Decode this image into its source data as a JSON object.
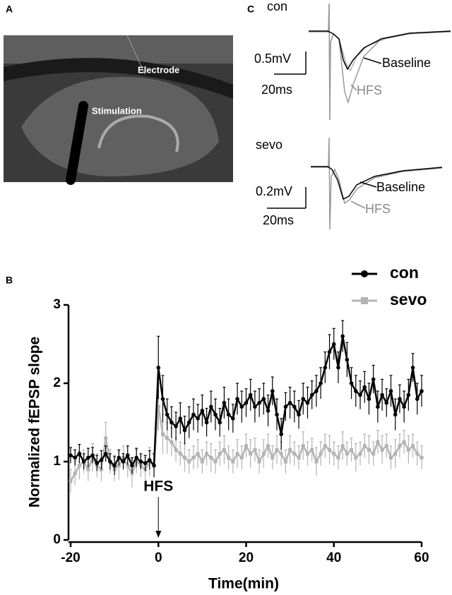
{
  "panels": {
    "a": {
      "label": "A",
      "labels": [
        "Electrode",
        "Stimulation"
      ]
    },
    "b": {
      "label": "B"
    },
    "c": {
      "label": "C",
      "traces": [
        {
          "name": "con",
          "scale_y": "0.5mV",
          "scale_x": "20ms",
          "labels": [
            "Baseline",
            "HFS"
          ]
        },
        {
          "name": "sevo",
          "scale_y": "0.2mV",
          "scale_x": "20ms",
          "labels": [
            "Baseline",
            "HFS"
          ]
        }
      ]
    }
  },
  "chart_data": {
    "type": "line",
    "x_label": "Time(min)",
    "y_label": "Normalized fEPSP slope",
    "xlim": [
      -20,
      60
    ],
    "xticks": [
      -20,
      0,
      20,
      40,
      60
    ],
    "ylim": [
      0,
      3
    ],
    "yticks": [
      0,
      1,
      2,
      3
    ],
    "legend": "upper right",
    "annotations": [
      {
        "text": "HFS",
        "x": 0
      }
    ],
    "x": [
      -20,
      -19,
      -18,
      -17,
      -16,
      -15,
      -14,
      -13,
      -12,
      -11,
      -10,
      -9,
      -8,
      -7,
      -6,
      -5,
      -4,
      -3,
      -2,
      -1,
      0,
      1,
      2,
      3,
      4,
      5,
      6,
      7,
      8,
      9,
      10,
      11,
      12,
      13,
      14,
      15,
      16,
      17,
      18,
      19,
      20,
      21,
      22,
      23,
      24,
      25,
      26,
      27,
      28,
      29,
      30,
      31,
      32,
      33,
      34,
      35,
      36,
      37,
      38,
      39,
      40,
      41,
      42,
      43,
      44,
      45,
      46,
      47,
      48,
      49,
      50,
      51,
      52,
      53,
      54,
      55,
      56,
      57,
      58,
      59,
      60
    ],
    "series": [
      {
        "name": "con",
        "color": "#000000",
        "marker": "circle",
        "values": [
          1.08,
          1.05,
          1.1,
          1.0,
          1.05,
          1.08,
          0.98,
          1.02,
          1.1,
          1.0,
          0.95,
          1.05,
          1.0,
          1.08,
          0.95,
          1.05,
          1.0,
          0.98,
          1.02,
          0.95,
          2.2,
          1.8,
          1.6,
          1.5,
          1.45,
          1.55,
          1.4,
          1.5,
          1.6,
          1.55,
          1.65,
          1.5,
          1.7,
          1.6,
          1.5,
          1.75,
          1.6,
          1.55,
          1.8,
          1.7,
          1.75,
          1.85,
          1.7,
          1.75,
          1.8,
          1.65,
          1.9,
          1.6,
          1.35,
          1.7,
          1.75,
          1.7,
          1.6,
          1.8,
          1.75,
          1.85,
          1.9,
          2.0,
          2.2,
          2.4,
          2.5,
          2.2,
          2.6,
          2.3,
          2.0,
          1.9,
          1.85,
          1.95,
          1.8,
          2.05,
          1.7,
          1.85,
          1.75,
          1.9,
          1.6,
          1.8,
          1.7,
          1.85,
          2.2,
          1.8,
          1.9
        ],
        "errors": [
          0.1,
          0.1,
          0.12,
          0.1,
          0.12,
          0.1,
          0.1,
          0.12,
          0.1,
          0.1,
          0.12,
          0.1,
          0.1,
          0.12,
          0.1,
          0.12,
          0.1,
          0.1,
          0.12,
          0.15,
          0.4,
          0.3,
          0.2,
          0.2,
          0.18,
          0.2,
          0.18,
          0.2,
          0.2,
          0.18,
          0.2,
          0.18,
          0.2,
          0.2,
          0.18,
          0.2,
          0.2,
          0.18,
          0.2,
          0.2,
          0.18,
          0.2,
          0.2,
          0.18,
          0.2,
          0.2,
          0.18,
          0.2,
          0.2,
          0.18,
          0.2,
          0.2,
          0.18,
          0.2,
          0.2,
          0.18,
          0.2,
          0.2,
          0.2,
          0.22,
          0.2,
          0.2,
          0.2,
          0.22,
          0.2,
          0.2,
          0.18,
          0.2,
          0.2,
          0.18,
          0.2,
          0.2,
          0.18,
          0.2,
          0.2,
          0.18,
          0.2,
          0.2,
          0.18,
          0.2,
          0.2
        ]
      },
      {
        "name": "sevo",
        "color": "#b3b3b3",
        "marker": "square",
        "values": [
          0.75,
          0.85,
          0.95,
          1.0,
          0.9,
          1.05,
          0.95,
          0.9,
          1.3,
          1.0,
          0.9,
          0.95,
          1.05,
          0.95,
          0.85,
          1.0,
          0.95,
          0.9,
          1.0,
          0.95,
          1.7,
          1.35,
          1.3,
          1.25,
          1.15,
          1.1,
          1.05,
          1.0,
          1.05,
          1.1,
          1.0,
          1.1,
          1.05,
          1.0,
          1.1,
          1.15,
          1.05,
          1.0,
          1.1,
          1.05,
          1.2,
          1.1,
          1.15,
          1.0,
          1.1,
          1.2,
          1.05,
          1.15,
          1.1,
          1.0,
          1.15,
          1.1,
          1.05,
          1.2,
          1.1,
          1.15,
          1.0,
          1.1,
          1.2,
          1.15,
          1.1,
          1.05,
          1.2,
          1.1,
          1.15,
          1.05,
          1.1,
          1.2,
          1.15,
          1.1,
          1.25,
          1.15,
          1.2,
          1.05,
          1.1,
          1.2,
          1.25,
          1.15,
          1.2,
          1.1,
          1.05
        ],
        "errors": [
          0.15,
          0.15,
          0.18,
          0.15,
          0.15,
          0.18,
          0.15,
          0.15,
          0.2,
          0.15,
          0.15,
          0.18,
          0.15,
          0.15,
          0.18,
          0.15,
          0.15,
          0.15,
          0.18,
          0.15,
          0.3,
          0.25,
          0.2,
          0.18,
          0.15,
          0.15,
          0.18,
          0.15,
          0.15,
          0.18,
          0.15,
          0.15,
          0.18,
          0.15,
          0.15,
          0.18,
          0.15,
          0.15,
          0.18,
          0.15,
          0.15,
          0.18,
          0.15,
          0.15,
          0.18,
          0.15,
          0.15,
          0.18,
          0.15,
          0.15,
          0.18,
          0.15,
          0.15,
          0.18,
          0.15,
          0.15,
          0.18,
          0.15,
          0.15,
          0.18,
          0.15,
          0.15,
          0.18,
          0.15,
          0.15,
          0.18,
          0.15,
          0.15,
          0.18,
          0.15,
          0.15,
          0.18,
          0.15,
          0.15,
          0.18,
          0.15,
          0.15,
          0.18,
          0.15,
          0.15,
          0.15
        ]
      }
    ]
  }
}
